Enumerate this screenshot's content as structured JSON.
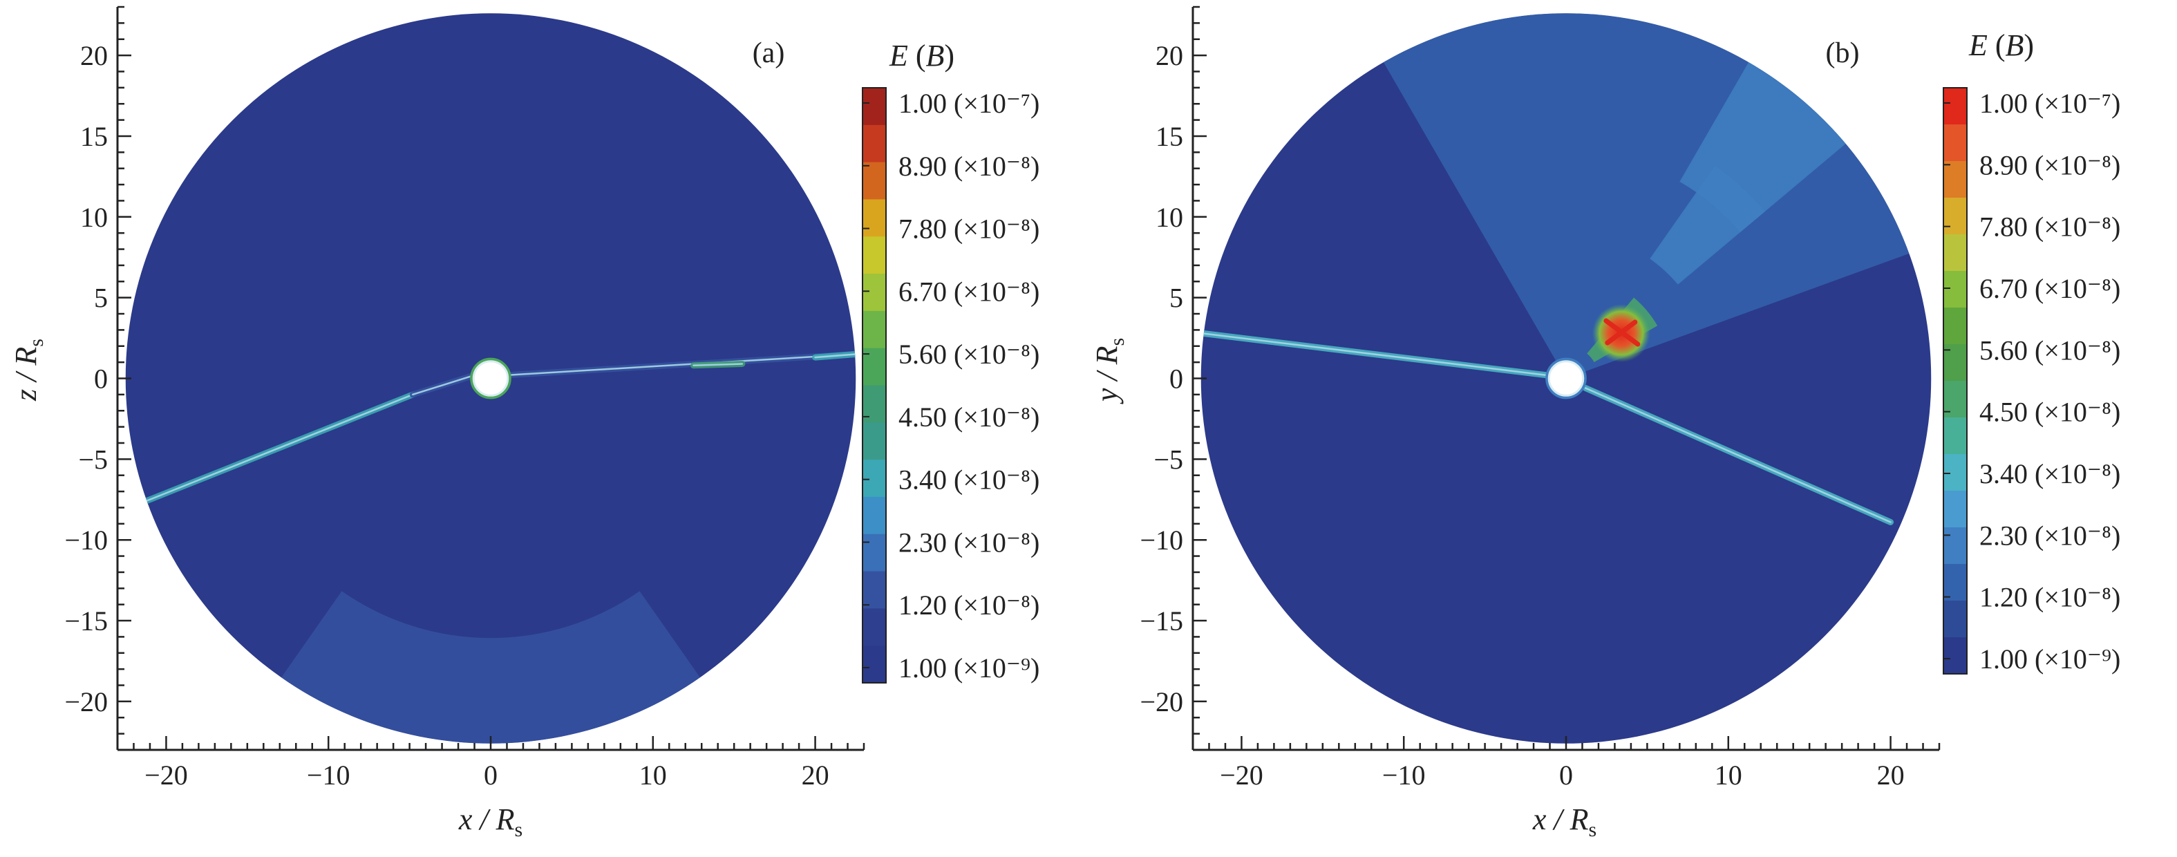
{
  "chart_data": [
    {
      "type": "heatmap",
      "panel": "(a)",
      "x_axis": {
        "symbol": "x",
        "unit": "R",
        "unit_sub": "s",
        "ticks": [
          -20,
          -10,
          0,
          10,
          20
        ],
        "range": [
          -23,
          23
        ]
      },
      "y_axis": {
        "symbol": "z",
        "unit": "R",
        "unit_sub": "s",
        "ticks": [
          20,
          15,
          10,
          5,
          0,
          -5,
          -10,
          -15,
          -20
        ],
        "range": [
          -23,
          23
        ]
      },
      "domain_radius": 22.5,
      "inner_hole_radius": 0.8,
      "background_level": 1e-09,
      "features": [
        {
          "kind": "streak",
          "from": [
            -21.5,
            -7.7
          ],
          "to": [
            -4.8,
            -1.0
          ],
          "level": 3.4e-08
        },
        {
          "kind": "streak",
          "from": [
            -4.8,
            -1.0
          ],
          "to": [
            -1.0,
            0.2
          ],
          "level": 1.2e-08
        },
        {
          "kind": "streak",
          "from": [
            1.0,
            0.2
          ],
          "to": [
            22.5,
            1.5
          ],
          "level": 1.2e-08
        },
        {
          "kind": "streak",
          "from": [
            12.5,
            0.8
          ],
          "to": [
            15.5,
            0.9
          ],
          "level": 4.5e-08
        },
        {
          "kind": "streak",
          "from": [
            20.0,
            1.3
          ],
          "to": [
            22.5,
            1.5
          ],
          "level": 3.4e-08
        },
        {
          "kind": "ring",
          "center": [
            0,
            0
          ],
          "radius": 1.1,
          "level": 5.6e-08
        },
        {
          "kind": "sector",
          "r_inner": 16.0,
          "r_outer": 22.5,
          "deg_from": 235,
          "deg_to": 305,
          "level": 1.2e-08
        }
      ],
      "colorbar": {
        "title": "E",
        "title_var": "B",
        "labels": [
          "1.00 (×10⁻⁷)",
          "8.90 (×10⁻⁸)",
          "7.80 (×10⁻⁸)",
          "6.70 (×10⁻⁸)",
          "5.60 (×10⁻⁸)",
          "4.50 (×10⁻⁸)",
          "3.40 (×10⁻⁸)",
          "2.30 (×10⁻⁸)",
          "1.20 (×10⁻⁸)",
          "1.00 (×10⁻⁹)"
        ],
        "levels": [
          1e-07,
          8.9e-08,
          7.8e-08,
          6.7e-08,
          5.6e-08,
          4.5e-08,
          3.4e-08,
          2.3e-08,
          1.2e-08,
          1e-09
        ],
        "colors": [
          "#a2231b",
          "#c63a1f",
          "#d2661e",
          "#d9a51f",
          "#c8c72c",
          "#9dc43b",
          "#6db548",
          "#4ba659",
          "#3f9b73",
          "#3b9b8a",
          "#3ca7b5",
          "#3c8fc7",
          "#3a70b8",
          "#3552a0",
          "#2f3f8f",
          "#2b3a8a"
        ]
      }
    },
    {
      "type": "heatmap",
      "panel": "(b)",
      "x_axis": {
        "symbol": "x",
        "unit": "R",
        "unit_sub": "s",
        "ticks": [
          -20,
          -10,
          0,
          10,
          20
        ],
        "range": [
          -23,
          23
        ]
      },
      "y_axis": {
        "symbol": "y",
        "unit": "R",
        "unit_sub": "s",
        "ticks": [
          20,
          15,
          10,
          5,
          0,
          -5,
          -10,
          -15,
          -20
        ],
        "range": [
          -23,
          23
        ]
      },
      "domain_radius": 22.5,
      "inner_hole_radius": 0.8,
      "background_level": 1e-09,
      "features": [
        {
          "kind": "sector",
          "r_inner": 1.0,
          "r_outer": 22.5,
          "deg_from": 20,
          "deg_to": 120,
          "level": 1.2e-08
        },
        {
          "kind": "sector",
          "r_inner": 14.0,
          "r_outer": 22.5,
          "deg_from": 40,
          "deg_to": 60,
          "level": 2.3e-08
        },
        {
          "kind": "sector",
          "r_inner": 9.0,
          "r_outer": 16.0,
          "deg_from": 40,
          "deg_to": 55,
          "level": 2.3e-08
        },
        {
          "kind": "sector",
          "r_inner": 2.0,
          "r_outer": 6.5,
          "deg_from": 30,
          "deg_to": 50,
          "level": 4.5e-08
        },
        {
          "kind": "hotspot",
          "center": [
            3.4,
            2.8
          ],
          "level": 1e-07
        },
        {
          "kind": "streak",
          "from": [
            -22.5,
            2.8
          ],
          "to": [
            -1.2,
            0.2
          ],
          "level": 3.4e-08
        },
        {
          "kind": "streak",
          "from": [
            1.2,
            -0.6
          ],
          "to": [
            20.0,
            -8.9
          ],
          "level": 3.4e-08
        },
        {
          "kind": "ring",
          "center": [
            0,
            0
          ],
          "radius": 1.1,
          "level": 2.3e-08
        }
      ],
      "colorbar": {
        "title": "E",
        "title_var": "B",
        "labels": [
          "1.00 (×10⁻⁷)",
          "8.90 (×10⁻⁸)",
          "7.80 (×10⁻⁸)",
          "6.70 (×10⁻⁸)",
          "5.60 (×10⁻⁸)",
          "4.50 (×10⁻⁸)",
          "3.40 (×10⁻⁸)",
          "2.30 (×10⁻⁸)",
          "1.20 (×10⁻⁸)",
          "1.00 (×10⁻⁹)"
        ],
        "levels": [
          1e-07,
          8.9e-08,
          7.8e-08,
          6.7e-08,
          5.6e-08,
          4.5e-08,
          3.4e-08,
          2.3e-08,
          1.2e-08,
          1e-09
        ],
        "colors": [
          "#e0281b",
          "#e4552a",
          "#dd7d25",
          "#d8ad2c",
          "#b9c43c",
          "#86bd3d",
          "#5fa63d",
          "#4f9f4b",
          "#4aa66a",
          "#49b098",
          "#4bb3c4",
          "#4a9bd0",
          "#3f7fc2",
          "#3463ad",
          "#2e4b98",
          "#2b3a8a"
        ]
      }
    }
  ]
}
